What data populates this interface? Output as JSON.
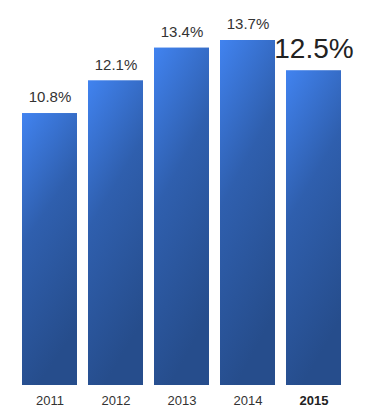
{
  "chart_data": {
    "type": "bar",
    "categories": [
      "2011",
      "2012",
      "2013",
      "2014",
      "2015"
    ],
    "values": [
      10.8,
      12.1,
      13.4,
      13.7,
      12.5
    ],
    "value_labels": [
      "10.8%",
      "12.1%",
      "13.4%",
      "13.7%",
      "12.5%"
    ],
    "data_labels": true,
    "color": "#2f5fae",
    "ylim": [
      0,
      13.7
    ],
    "tick_labels": "x",
    "grid": false
  }
}
